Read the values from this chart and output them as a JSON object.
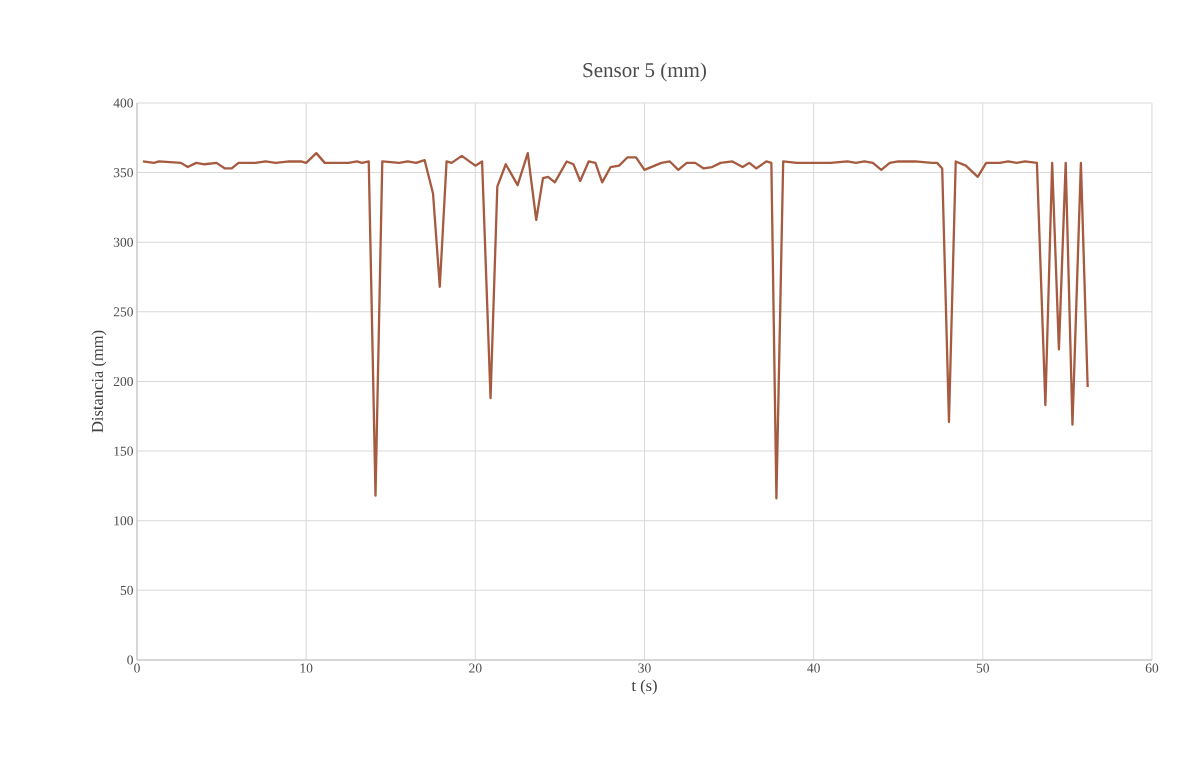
{
  "chart_data": {
    "type": "line",
    "title": "Sensor 5 (mm)",
    "xlabel": "t (s)",
    "ylabel": "Distancia (mm)",
    "xlim": [
      0,
      60
    ],
    "xticks": [
      0,
      10,
      20,
      30,
      40,
      50,
      60
    ],
    "ylim": [
      0,
      400
    ],
    "yticks": [
      0,
      50,
      100,
      150,
      200,
      250,
      300,
      350,
      400
    ],
    "grid": true,
    "marker": "none",
    "line_style": "solid",
    "x": [
      0.35,
      1,
      1.3,
      2.6,
      3.0,
      3.5,
      4.0,
      4.7,
      5.2,
      5.6,
      6.0,
      7.0,
      7.6,
      8.2,
      9.0,
      9.7,
      10.0,
      10.6,
      11.1,
      12.5,
      13.0,
      13.3,
      13.7,
      14.1,
      14.5,
      15.5,
      16.0,
      16.5,
      17.0,
      17.5,
      17.9,
      18.3,
      18.6,
      19.2,
      20.0,
      20.4,
      20.9,
      21.3,
      21.8,
      22.5,
      23.1,
      23.6,
      24.0,
      24.3,
      24.7,
      25.4,
      25.8,
      26.2,
      26.7,
      27.1,
      27.5,
      28.0,
      28.5,
      29.0,
      29.5,
      30.0,
      31.0,
      31.5,
      32.0,
      32.5,
      33.0,
      33.5,
      34.0,
      34.5,
      35.2,
      35.8,
      36.2,
      36.6,
      37.2,
      37.5,
      37.8,
      38.2,
      39.0,
      40,
      41,
      42,
      42.5,
      43,
      43.5,
      44.0,
      44.5,
      45,
      46,
      47,
      47.3,
      47.6,
      48.0,
      48.4,
      49.0,
      49.7,
      50.2,
      51,
      51.5,
      52,
      52.5,
      53.2,
      53.7,
      54.1,
      54.5,
      54.9,
      55.3,
      55.8,
      56.2
    ],
    "series": [
      {
        "color": "#a65b40",
        "values": [
          358,
          357,
          358,
          357,
          354,
          357,
          356,
          357,
          353,
          353,
          357,
          357,
          358,
          357,
          358,
          358,
          357,
          364,
          357,
          357,
          358,
          357,
          358,
          118,
          358,
          357,
          358,
          357,
          359,
          335,
          268,
          358,
          357,
          362,
          355,
          358,
          188,
          340,
          356,
          341,
          364,
          316,
          346,
          347,
          343,
          358,
          356,
          344,
          358,
          357,
          343,
          354,
          355,
          361,
          361,
          352,
          357,
          358,
          352,
          357,
          357,
          353,
          354,
          357,
          358,
          354,
          357,
          353,
          358,
          357,
          116,
          358,
          357,
          357,
          357,
          358,
          357,
          358,
          357,
          352,
          357,
          358,
          358,
          357,
          357,
          353,
          171,
          358,
          355,
          347,
          357,
          357,
          358,
          357,
          358,
          357,
          183,
          357,
          223,
          357,
          169,
          357,
          196
        ]
      }
    ]
  }
}
